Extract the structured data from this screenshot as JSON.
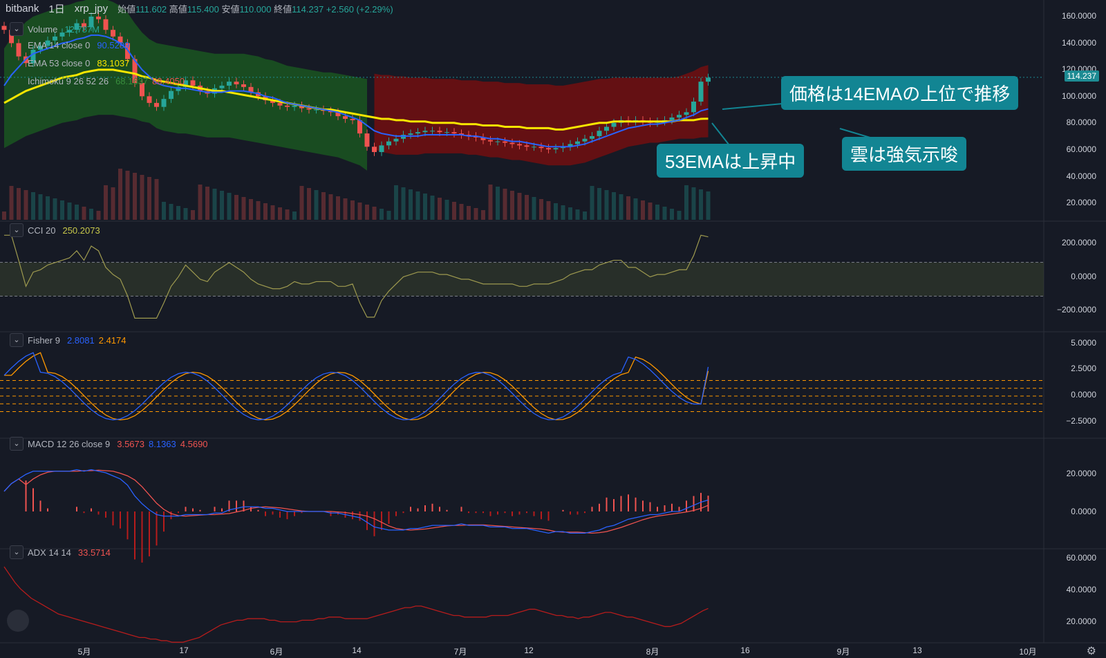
{
  "header": {
    "exchange": "bitbank",
    "interval": "1日",
    "symbol": "xrp_jpy",
    "open_label": "始値",
    "open": "111.602",
    "high_label": "高値",
    "high": "115.400",
    "low_label": "安値",
    "low": "110.000",
    "close_label": "終値",
    "close": "114.237",
    "change": "+2.560 (+2.29%)"
  },
  "legends": {
    "volume": {
      "label": "Volume",
      "value": "12.787M"
    },
    "ema14": {
      "label": "EMA 14 close 0",
      "value": "90.5299"
    },
    "ema53": {
      "label": "EMA 53 close 0",
      "value": "83.1037"
    },
    "ichimoku": {
      "label": "Ichimoku 9 26 52 26",
      "value1": "68.1637",
      "value2": "88.4050"
    },
    "cci": {
      "label": "CCI 20",
      "value": "250.2073"
    },
    "fisher": {
      "label": "Fisher 9",
      "value1": "2.8081",
      "value2": "2.4174"
    },
    "macd": {
      "label": "MACD 12 26 close 9",
      "value1": "3.5673",
      "value2": "8.1363",
      "value3": "4.5690"
    },
    "adx": {
      "label": "ADX 14 14",
      "value": "33.5714"
    }
  },
  "toggle_icon": "chevron-down-icon",
  "price_tag": "114.237",
  "price_axis": [
    "160.0000",
    "140.0000",
    "120.0000",
    "100.0000",
    "80.0000",
    "60.0000",
    "40.0000",
    "20.0000"
  ],
  "cci_axis": [
    "200.0000",
    "0.0000",
    "−200.0000"
  ],
  "fisher_axis": [
    "5.0000",
    "2.5000",
    "0.0000",
    "−2.5000"
  ],
  "macd_axis": [
    "20.0000",
    "0.0000"
  ],
  "adx_axis": [
    "60.0000",
    "40.0000",
    "20.0000"
  ],
  "time_axis": [
    "5月",
    "17",
    "6月",
    "14",
    "7月",
    "12",
    "8月",
    "16",
    "9月",
    "13",
    "10月"
  ],
  "callouts": {
    "ema14": "価格は14EMAの上位で推移",
    "ema53": "53EMAは上昇中",
    "cloud": "雲は強気示唆"
  },
  "colors": {
    "background": "#161a25",
    "up": "#26a69a",
    "down": "#ef5350",
    "ema14": "#2962ff",
    "ema53": "#f7e600",
    "cloud_bull": "#1b5e20",
    "cloud_bear": "#7f0e0e",
    "callout": "#128593",
    "adx": "#b71c1c",
    "fisher1": "#2962ff",
    "fisher2": "#ff9800"
  },
  "chart_data": {
    "type": "candlestick",
    "price": {
      "ylim": [
        0,
        170
      ],
      "close": [
        150,
        140,
        130,
        125,
        135,
        138,
        142,
        145,
        148,
        150,
        155,
        152,
        160,
        158,
        150,
        145,
        140,
        128,
        110,
        100,
        95,
        92,
        98,
        104,
        107,
        112,
        108,
        104,
        102,
        106,
        108,
        111,
        109,
        107,
        103,
        100,
        97,
        95,
        93,
        92,
        93,
        91,
        90,
        90,
        89,
        88,
        85,
        83,
        82,
        72,
        62,
        58,
        63,
        66,
        68,
        71,
        72,
        73,
        74,
        74,
        73,
        73,
        72,
        71,
        70,
        69,
        67,
        66,
        66,
        65,
        64,
        63,
        62,
        62,
        61,
        60,
        61,
        62,
        64,
        66,
        68,
        70,
        74,
        77,
        80,
        82,
        81,
        82,
        81,
        80,
        81,
        82,
        84,
        86,
        88,
        96,
        111,
        114
      ],
      "ema14": [
        108,
        116,
        122,
        128,
        132,
        134,
        136,
        138,
        140,
        141,
        143,
        144,
        146,
        146,
        145,
        143,
        140,
        135,
        127,
        120,
        115,
        110,
        108,
        107,
        106,
        106,
        105,
        104,
        103,
        103,
        103,
        104,
        104,
        104,
        103,
        102,
        100,
        99,
        97,
        95,
        94,
        93,
        92,
        91,
        90,
        89,
        88,
        86,
        84,
        82,
        78,
        74,
        72,
        71,
        70,
        70,
        70,
        70,
        71,
        71,
        71,
        71,
        71,
        71,
        70,
        70,
        69,
        68,
        68,
        67,
        66,
        66,
        65,
        64,
        63,
        62,
        62,
        62,
        62,
        63,
        64,
        66,
        68,
        70,
        72,
        74,
        76,
        77,
        78,
        79,
        79,
        80,
        81,
        82,
        84,
        86,
        89,
        90.5
      ],
      "ema53": [
        95,
        98,
        101,
        104,
        106,
        108,
        110,
        112,
        114,
        115,
        116,
        118,
        119,
        120,
        120,
        120,
        119,
        118,
        117,
        115,
        114,
        112,
        111,
        110,
        109,
        108,
        107,
        106,
        105,
        104,
        104,
        103,
        102,
        101,
        100,
        99,
        98,
        97,
        96,
        95,
        94,
        93,
        92,
        91,
        90,
        90,
        89,
        88,
        87,
        86,
        85,
        84,
        83,
        83,
        82,
        82,
        81,
        81,
        81,
        80,
        80,
        80,
        80,
        79,
        79,
        79,
        78,
        78,
        78,
        77,
        77,
        77,
        76,
        76,
        76,
        76,
        75,
        75,
        76,
        77,
        78,
        79,
        80,
        80,
        81,
        81,
        81,
        81,
        81,
        81,
        81,
        81,
        81,
        82,
        82,
        82,
        83,
        83.1
      ]
    },
    "volume_value": "12.787M",
    "cci": {
      "ylim": [
        -300,
        300
      ],
      "band": [
        -100,
        100
      ],
      "last": 250.2073
    },
    "fisher": {
      "ylim": [
        -3.5,
        5.5
      ],
      "levels": [
        1.5,
        0.75,
        0,
        -0.75,
        -1.5
      ],
      "last": [
        2.8081,
        2.4174
      ]
    },
    "macd": {
      "ylim": [
        -20,
        30
      ],
      "last": [
        3.5673,
        8.1363,
        4.569
      ]
    },
    "adx": {
      "ylim": [
        5,
        65
      ],
      "values": [
        60,
        55,
        50,
        46,
        43,
        40,
        38,
        36,
        34,
        32,
        30,
        29,
        28,
        27,
        26,
        25,
        24,
        23,
        22,
        21,
        20,
        19,
        18,
        17,
        16,
        15,
        15,
        14,
        14,
        13,
        13,
        12,
        12,
        12,
        13,
        14,
        15,
        17,
        19,
        21,
        23,
        24,
        25,
        26,
        26,
        27,
        27,
        27,
        27,
        26,
        26,
        25,
        25,
        25,
        25,
        26,
        26,
        26,
        27,
        27,
        28,
        28,
        28,
        27,
        27,
        27,
        27,
        27,
        28,
        29,
        30,
        31,
        32,
        33,
        34,
        34,
        35,
        35,
        34,
        33,
        32,
        31,
        30,
        29,
        29,
        28,
        28,
        28,
        28,
        28,
        29,
        29,
        29,
        29,
        30,
        31,
        32,
        33,
        33,
        32,
        31,
        30,
        29,
        29,
        28,
        28,
        27,
        28,
        28,
        29,
        30,
        31,
        31,
        30,
        29,
        28,
        28,
        27,
        26,
        25,
        24,
        23,
        22,
        22,
        23,
        24,
        26,
        28,
        30,
        32,
        33.5
      ]
    }
  }
}
